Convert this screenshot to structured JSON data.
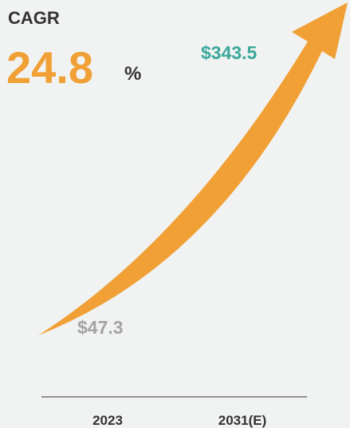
{
  "cagr": {
    "label": "CAGR",
    "value": "24.8",
    "unit": "%"
  },
  "start": {
    "year": "2023",
    "value": "$47.3"
  },
  "end": {
    "year": "2031(E)",
    "value": "$343.5"
  }
}
